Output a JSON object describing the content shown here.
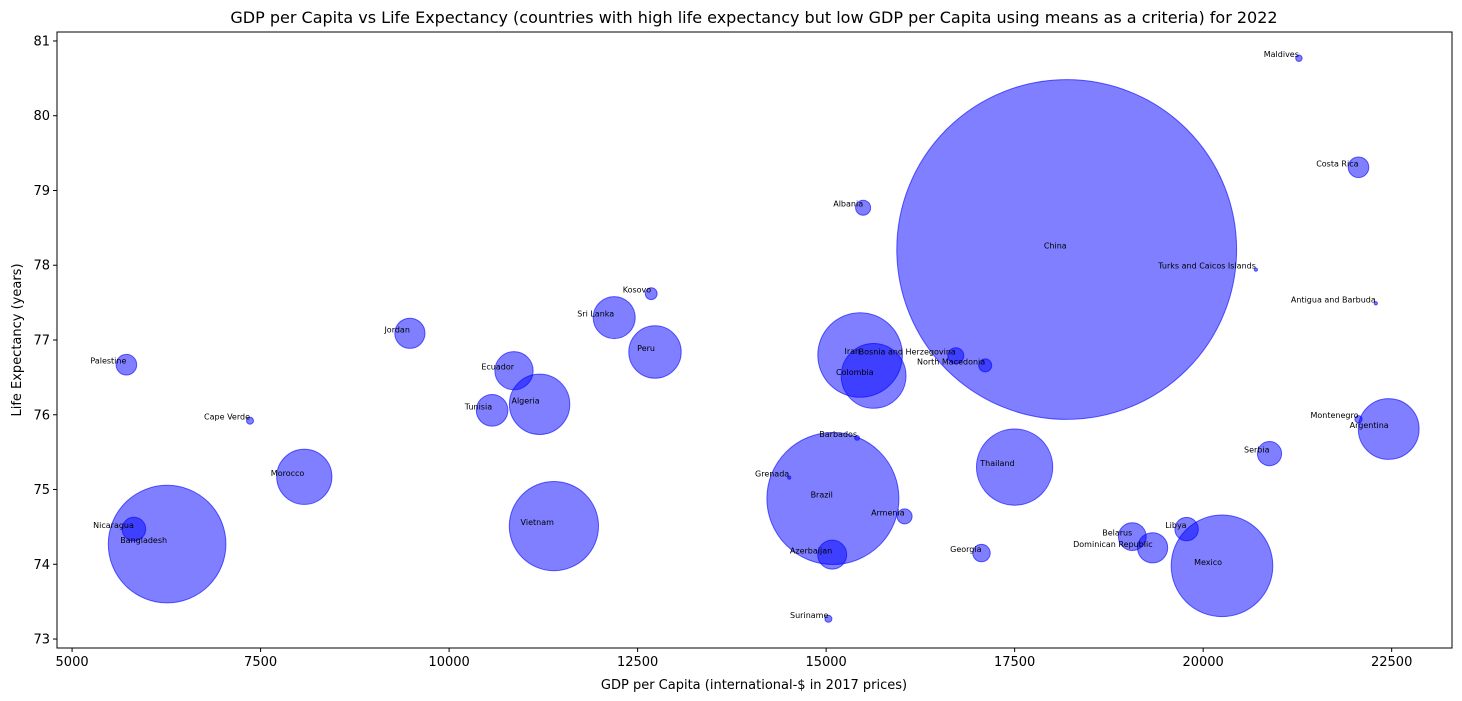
{
  "chart_data": {
    "type": "scatter",
    "title": "GDP per Capita vs Life Expectancy (countries with high life expectancy but low GDP per Capita using means as a criteria) for 2022",
    "xlabel": "GDP per Capita (international-$ in 2017 prices)",
    "ylabel": "Life Expectancy (years)",
    "xlim": [
      4800,
      23300
    ],
    "ylim": [
      72.88,
      81.12
    ],
    "xticks": [
      5000,
      7500,
      10000,
      12500,
      15000,
      17500,
      20000,
      22500
    ],
    "yticks": [
      73,
      74,
      75,
      76,
      77,
      78,
      79,
      80,
      81
    ],
    "grid": false,
    "marker_color": "#0000ff",
    "marker_alpha": 0.5,
    "size_encoding": "population (millions)",
    "points": [
      {
        "label": "Maldives",
        "x": 21270,
        "y": 80.77,
        "pop": 0.52
      },
      {
        "label": "Costa Rica",
        "x": 22060,
        "y": 79.31,
        "pop": 5.2
      },
      {
        "label": "Albania",
        "x": 15490,
        "y": 78.77,
        "pop": 2.8
      },
      {
        "label": "China",
        "x": 18190,
        "y": 78.21,
        "pop": 1425
      },
      {
        "label": "Turks and Caicos Islands",
        "x": 20700,
        "y": 77.94,
        "pop": 0.046
      },
      {
        "label": "Antigua and Barbuda",
        "x": 22290,
        "y": 77.49,
        "pop": 0.093
      },
      {
        "label": "Kosovo",
        "x": 12680,
        "y": 77.62,
        "pop": 1.7
      },
      {
        "label": "Sri Lanka",
        "x": 12190,
        "y": 77.3,
        "pop": 21.8
      },
      {
        "label": "Jordan",
        "x": 9480,
        "y": 77.09,
        "pop": 11.3
      },
      {
        "label": "Peru",
        "x": 12730,
        "y": 76.84,
        "pop": 34
      },
      {
        "label": "Iran",
        "x": 15450,
        "y": 76.8,
        "pop": 88.5
      },
      {
        "label": "Bosnia and Herzegovina",
        "x": 16720,
        "y": 76.79,
        "pop": 3.2
      },
      {
        "label": "North Macedonia",
        "x": 17110,
        "y": 76.66,
        "pop": 2.1
      },
      {
        "label": "Palestine",
        "x": 5720,
        "y": 76.67,
        "pop": 5.2
      },
      {
        "label": "Ecuador",
        "x": 10860,
        "y": 76.59,
        "pop": 18
      },
      {
        "label": "Colombia",
        "x": 15630,
        "y": 76.52,
        "pop": 51.9
      },
      {
        "label": "Algeria",
        "x": 11200,
        "y": 76.14,
        "pop": 44.9
      },
      {
        "label": "Tunisia",
        "x": 10570,
        "y": 76.06,
        "pop": 12.4
      },
      {
        "label": "Cape Verde",
        "x": 7360,
        "y": 75.92,
        "pop": 0.59
      },
      {
        "label": "Montenegro",
        "x": 22060,
        "y": 75.94,
        "pop": 0.63
      },
      {
        "label": "Argentina",
        "x": 22460,
        "y": 75.81,
        "pop": 45.5
      },
      {
        "label": "Barbados",
        "x": 15410,
        "y": 75.69,
        "pop": 0.28
      },
      {
        "label": "Serbia",
        "x": 20880,
        "y": 75.48,
        "pop": 7.2
      },
      {
        "label": "Thailand",
        "x": 17500,
        "y": 75.3,
        "pop": 71.7
      },
      {
        "label": "Morocco",
        "x": 8080,
        "y": 75.17,
        "pop": 37.5
      },
      {
        "label": "Grenada",
        "x": 14510,
        "y": 75.16,
        "pop": 0.13
      },
      {
        "label": "Brazil",
        "x": 15090,
        "y": 74.88,
        "pop": 215
      },
      {
        "label": "Armenia",
        "x": 16040,
        "y": 74.64,
        "pop": 2.8
      },
      {
        "label": "Nicaragua",
        "x": 5820,
        "y": 74.47,
        "pop": 6.9
      },
      {
        "label": "Vietnam",
        "x": 11390,
        "y": 74.51,
        "pop": 98.2
      },
      {
        "label": "Libya",
        "x": 19780,
        "y": 74.47,
        "pop": 6.8
      },
      {
        "label": "Belarus",
        "x": 19060,
        "y": 74.37,
        "pop": 9.5
      },
      {
        "label": "Bangladesh",
        "x": 6260,
        "y": 74.27,
        "pop": 171
      },
      {
        "label": "Dominican Republic",
        "x": 19330,
        "y": 74.22,
        "pop": 11.2
      },
      {
        "label": "Azerbaijan",
        "x": 15080,
        "y": 74.13,
        "pop": 10.4
      },
      {
        "label": "Georgia",
        "x": 17060,
        "y": 74.15,
        "pop": 3.7
      },
      {
        "label": "Mexico",
        "x": 20250,
        "y": 73.98,
        "pop": 127.5
      },
      {
        "label": "Suriname",
        "x": 15030,
        "y": 73.27,
        "pop": 0.62
      }
    ]
  }
}
